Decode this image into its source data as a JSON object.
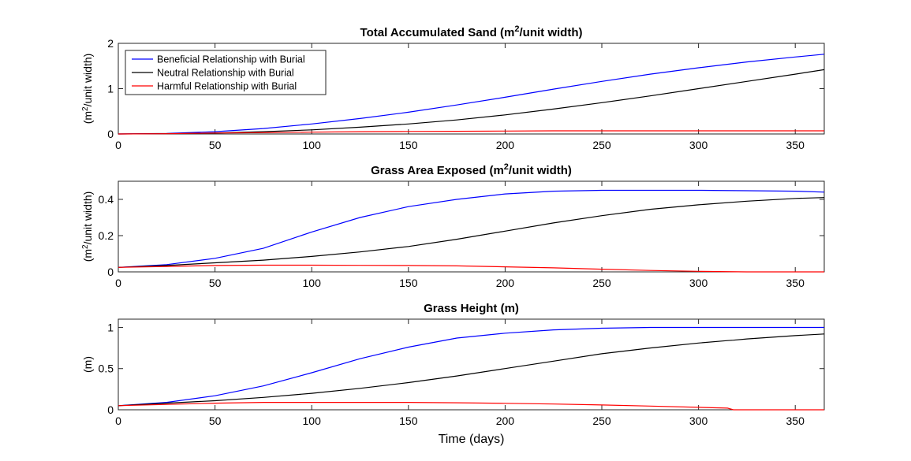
{
  "chart_data": [
    {
      "type": "line",
      "title": "Total Accumulated Sand (m",
      "title_sup": "2",
      "title_tail": "/unit width)",
      "ylabel_pre": "(m",
      "ylabel_sup": "2",
      "ylabel_post": "/unit width)",
      "xlim": [
        0,
        365
      ],
      "ylim": [
        0,
        2
      ],
      "xticks": [
        0,
        50,
        100,
        150,
        200,
        250,
        300,
        350
      ],
      "yticks": [
        0,
        1,
        2
      ],
      "x": [
        0,
        25,
        50,
        75,
        100,
        125,
        150,
        175,
        200,
        225,
        250,
        275,
        300,
        325,
        350,
        365
      ],
      "series": [
        {
          "name": "Beneficial Relationship with Burial",
          "color": "#0000ff",
          "values": [
            0,
            0.01,
            0.05,
            0.12,
            0.22,
            0.34,
            0.48,
            0.64,
            0.81,
            0.99,
            1.16,
            1.32,
            1.46,
            1.59,
            1.7,
            1.76
          ]
        },
        {
          "name": "Neutral Relationship with Burial",
          "color": "#000000",
          "values": [
            0,
            0.005,
            0.02,
            0.05,
            0.09,
            0.15,
            0.22,
            0.31,
            0.42,
            0.55,
            0.69,
            0.84,
            1.0,
            1.16,
            1.32,
            1.42
          ]
        },
        {
          "name": "Harmful Relationship with Burial",
          "color": "#ff0000",
          "values": [
            0,
            0.005,
            0.02,
            0.03,
            0.04,
            0.05,
            0.055,
            0.06,
            0.065,
            0.07,
            0.07,
            0.07,
            0.07,
            0.07,
            0.07,
            0.07
          ]
        }
      ],
      "legend": "top-left"
    },
    {
      "type": "line",
      "title": "Grass Area Exposed (m",
      "title_sup": "2",
      "title_tail": "/unit width)",
      "ylabel_pre": "(m",
      "ylabel_sup": "2",
      "ylabel_post": "/unit width)",
      "xlim": [
        0,
        365
      ],
      "ylim": [
        0,
        0.5
      ],
      "xticks": [
        0,
        50,
        100,
        150,
        200,
        250,
        300,
        350
      ],
      "yticks": [
        0,
        0.2,
        0.4
      ],
      "x": [
        0,
        25,
        50,
        75,
        100,
        125,
        150,
        175,
        200,
        225,
        250,
        275,
        300,
        325,
        350,
        365
      ],
      "series": [
        {
          "name": "Beneficial Relationship with Burial",
          "color": "#0000ff",
          "values": [
            0.025,
            0.04,
            0.075,
            0.13,
            0.22,
            0.3,
            0.36,
            0.4,
            0.43,
            0.445,
            0.45,
            0.45,
            0.45,
            0.448,
            0.445,
            0.44
          ]
        },
        {
          "name": "Neutral Relationship with Burial",
          "color": "#000000",
          "values": [
            0.025,
            0.035,
            0.05,
            0.065,
            0.085,
            0.11,
            0.14,
            0.18,
            0.225,
            0.27,
            0.31,
            0.345,
            0.37,
            0.39,
            0.405,
            0.41
          ]
        },
        {
          "name": "Harmful Relationship with Burial",
          "color": "#ff0000",
          "values": [
            0.025,
            0.03,
            0.035,
            0.037,
            0.037,
            0.036,
            0.035,
            0.033,
            0.028,
            0.022,
            0.015,
            0.008,
            0.003,
            0,
            0,
            0
          ]
        }
      ]
    },
    {
      "type": "line",
      "title": "Grass Height (m)",
      "ylabel_pre": "(m)",
      "xlabel": "Time (days)",
      "xlim": [
        0,
        365
      ],
      "ylim": [
        0,
        1.1
      ],
      "xticks": [
        0,
        50,
        100,
        150,
        200,
        250,
        300,
        350
      ],
      "yticks": [
        0,
        0.5,
        1
      ],
      "x": [
        0,
        25,
        50,
        75,
        100,
        125,
        150,
        175,
        200,
        225,
        250,
        275,
        300,
        315,
        318,
        325,
        350,
        365
      ],
      "series": [
        {
          "name": "Beneficial Relationship with Burial",
          "color": "#0000ff",
          "values": [
            0.05,
            0.09,
            0.17,
            0.29,
            0.45,
            0.62,
            0.76,
            0.87,
            0.93,
            0.97,
            0.99,
            1.0,
            1.0,
            1.0,
            1.0,
            1.0,
            1.0,
            1.0
          ]
        },
        {
          "name": "Neutral Relationship with Burial",
          "color": "#000000",
          "values": [
            0.05,
            0.08,
            0.11,
            0.15,
            0.2,
            0.26,
            0.33,
            0.41,
            0.5,
            0.59,
            0.68,
            0.75,
            0.81,
            0.84,
            0.845,
            0.86,
            0.9,
            0.92
          ]
        },
        {
          "name": "Harmful Relationship with Burial",
          "color": "#ff0000",
          "values": [
            0.05,
            0.065,
            0.08,
            0.09,
            0.09,
            0.09,
            0.09,
            0.085,
            0.078,
            0.07,
            0.058,
            0.045,
            0.03,
            0.02,
            0.0,
            0.0,
            0.0,
            0.0
          ]
        }
      ]
    }
  ]
}
